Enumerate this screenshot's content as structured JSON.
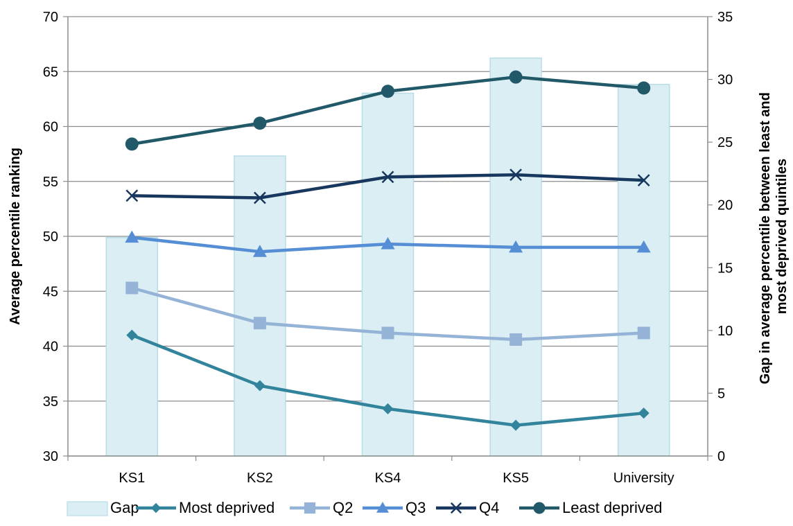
{
  "chart_data": {
    "type": "bar+line",
    "categories": [
      "KS1",
      "KS2",
      "KS4",
      "KS5",
      "University"
    ],
    "bars": {
      "name": "Gap",
      "axis": "right",
      "values": [
        17.4,
        23.9,
        28.9,
        31.7,
        29.6
      ],
      "color": "#daeef3"
    },
    "series": [
      {
        "name": "Most deprived",
        "values": [
          41.0,
          36.4,
          34.3,
          32.8,
          33.9
        ],
        "color": "#31849b",
        "marker": "diamond"
      },
      {
        "name": "Q2",
        "values": [
          45.3,
          42.1,
          41.2,
          40.6,
          41.2
        ],
        "color": "#95b3d7",
        "marker": "square"
      },
      {
        "name": "Q3",
        "values": [
          49.9,
          48.6,
          49.3,
          49.0,
          49.0
        ],
        "color": "#558ed5",
        "marker": "triangle"
      },
      {
        "name": "Q4",
        "values": [
          53.7,
          53.5,
          55.4,
          55.6,
          55.1
        ],
        "color": "#17375e",
        "marker": "x"
      },
      {
        "name": "Least deprived",
        "values": [
          58.4,
          60.3,
          63.2,
          64.5,
          63.5
        ],
        "color": "#215968",
        "marker": "circle"
      }
    ],
    "y_left": {
      "label": "Average percentile ranking",
      "min": 30,
      "max": 70,
      "step": 5
    },
    "y_right": {
      "label_lines": [
        "Gap in average percentile between least and",
        "most deprived quintiles"
      ],
      "min": 0,
      "max": 35,
      "step": 5
    },
    "grid": true,
    "legend": "bottom"
  }
}
